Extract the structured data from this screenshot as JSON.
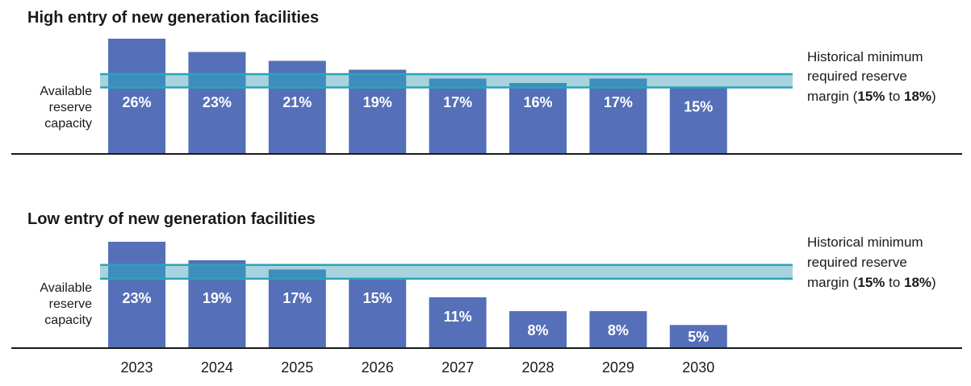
{
  "colors": {
    "bar": "#5570b8",
    "band_fill": "#a8d3de",
    "band_line": "#2ba3b8",
    "overlap": "#3f8cbf",
    "axis": "#1a1a1a"
  },
  "chart_data": [
    {
      "type": "bar",
      "title": "High entry of new generation facilities",
      "side_label": [
        "Available",
        "reserve",
        "capacity"
      ],
      "categories": [
        "2023",
        "2024",
        "2025",
        "2026",
        "2027",
        "2028",
        "2029",
        "2030"
      ],
      "values": [
        26,
        23,
        21,
        19,
        17,
        16,
        17,
        15
      ],
      "value_labels": [
        "26%",
        "23%",
        "21%",
        "19%",
        "17%",
        "16%",
        "17%",
        "15%"
      ],
      "band": {
        "low": 15,
        "high": 18,
        "label_lines": [
          "Historical minimum",
          "required reserve"
        ],
        "label_last_line": [
          "margin (",
          "15%",
          " to ",
          "18%",
          ")"
        ]
      },
      "ylim": [
        0,
        26
      ]
    },
    {
      "type": "bar",
      "title": "Low entry of new generation facilities",
      "side_label": [
        "Available",
        "reserve",
        "capacity"
      ],
      "categories": [
        "2023",
        "2024",
        "2025",
        "2026",
        "2027",
        "2028",
        "2029",
        "2030"
      ],
      "values": [
        23,
        19,
        17,
        15,
        11,
        8,
        8,
        5
      ],
      "value_labels": [
        "23%",
        "19%",
        "17%",
        "15%",
        "11%",
        "8%",
        "8%",
        "5%"
      ],
      "band": {
        "low": 15,
        "high": 18,
        "label_lines": [
          "Historical minimum",
          "required reserve"
        ],
        "label_last_line": [
          "margin (",
          "15%",
          " to ",
          "18%",
          ")"
        ]
      },
      "ylim": [
        0,
        23
      ]
    }
  ],
  "x_axis": {
    "tick_labels": [
      "2023",
      "2024",
      "2025",
      "2026",
      "2027",
      "2028",
      "2029",
      "2030"
    ]
  }
}
